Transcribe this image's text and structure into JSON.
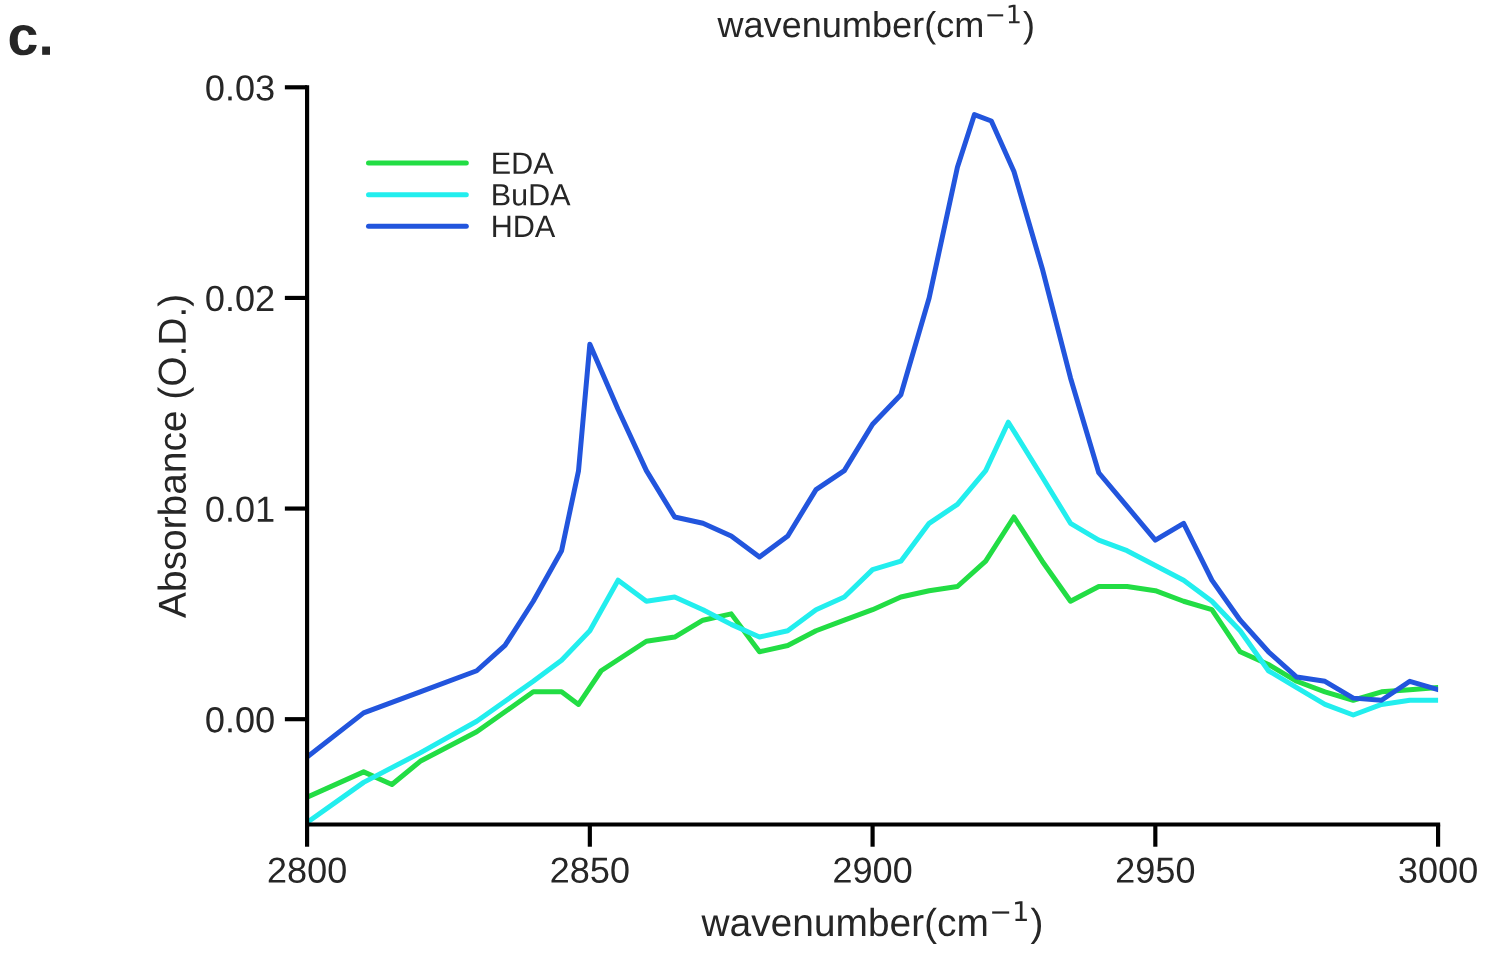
{
  "chart_data": {
    "type": "line",
    "xlabel": "wavenumber(cm$^{−1}$)",
    "ylabel": "Absorbance (O.D.)",
    "annotations": [
      "c.",
      "wavenumber(cm$^{−1}$)"
    ],
    "xlim": [
      2800,
      3000
    ],
    "xticks": [
      2800,
      2850,
      2900,
      2950,
      3000
    ],
    "ylim": [
      -0.005,
      0.03
    ],
    "yticks": [
      {
        "value": 0,
        "label": "0.00"
      },
      {
        "value": 0.01,
        "label": "0.01"
      },
      {
        "value": 0.02,
        "label": "0.02"
      },
      {
        "value": 0.03,
        "label": "0.03"
      }
    ],
    "grid": false,
    "legend": "top left",
    "line_style": "solid",
    "marker": "none",
    "series": [
      {
        "name": "EDA",
        "color": "#22dd44",
        "x": [
          2800,
          2810,
          2815,
          2820,
          2830,
          2840,
          2845,
          2848,
          2852,
          2860,
          2865,
          2870,
          2875,
          2880,
          2885,
          2890,
          2895,
          2900,
          2905,
          2910,
          2915,
          2920,
          2925,
          2930,
          2935,
          2940,
          2945,
          2950,
          2955,
          2960,
          2965,
          2970,
          2975,
          2980,
          2985,
          2990,
          2995,
          3000
        ],
        "values": [
          -0.0037,
          -0.0025,
          -0.0031,
          -0.002,
          -0.0006,
          0.0013,
          0.0013,
          0.0007,
          0.0023,
          0.0037,
          0.0039,
          0.0047,
          0.005,
          0.0032,
          0.0035,
          0.0042,
          0.0047,
          0.0052,
          0.0058,
          0.0061,
          0.0063,
          0.0075,
          0.0096,
          0.0075,
          0.0056,
          0.0063,
          0.0063,
          0.0061,
          0.0056,
          0.0052,
          0.0032,
          0.0026,
          0.0018,
          0.0013,
          0.0009,
          0.0013,
          0.0014,
          0.0015
        ]
      },
      {
        "name": "BuDA",
        "color": "#22eeee",
        "x": [
          2800,
          2810,
          2820,
          2830,
          2840,
          2845,
          2850,
          2855,
          2860,
          2865,
          2870,
          2875,
          2880,
          2885,
          2890,
          2895,
          2900,
          2905,
          2910,
          2915,
          2920,
          2924,
          2930,
          2935,
          2940,
          2945,
          2950,
          2955,
          2960,
          2965,
          2970,
          2975,
          2980,
          2985,
          2990,
          2995,
          3000
        ],
        "values": [
          -0.0049,
          -0.003,
          -0.0016,
          -0.0001,
          0.0018,
          0.0028,
          0.0042,
          0.0066,
          0.0056,
          0.0058,
          0.0052,
          0.0045,
          0.0039,
          0.0042,
          0.0052,
          0.0058,
          0.0071,
          0.0075,
          0.0093,
          0.0102,
          0.0118,
          0.0141,
          0.0115,
          0.0093,
          0.0085,
          0.008,
          0.0073,
          0.0066,
          0.0056,
          0.0042,
          0.0023,
          0.0015,
          0.0007,
          0.0002,
          0.0007,
          0.0009,
          0.0009
        ]
      },
      {
        "name": "HDA",
        "color": "#2255dd",
        "x": [
          2800,
          2810,
          2820,
          2830,
          2835,
          2840,
          2845,
          2848,
          2850,
          2855,
          2860,
          2865,
          2870,
          2875,
          2880,
          2885,
          2890,
          2895,
          2900,
          2905,
          2910,
          2915,
          2918,
          2921,
          2925,
          2930,
          2935,
          2940,
          2945,
          2950,
          2955,
          2960,
          2965,
          2970,
          2975,
          2980,
          2985,
          2990,
          2995,
          3000
        ],
        "values": [
          -0.0018,
          0.0003,
          0.0013,
          0.0023,
          0.0035,
          0.0056,
          0.008,
          0.0118,
          0.0178,
          0.0147,
          0.0118,
          0.0096,
          0.0093,
          0.0087,
          0.0077,
          0.0087,
          0.0109,
          0.0118,
          0.014,
          0.0154,
          0.02,
          0.0262,
          0.0287,
          0.0284,
          0.026,
          0.0214,
          0.0162,
          0.0117,
          0.0101,
          0.0085,
          0.0093,
          0.0066,
          0.0047,
          0.0032,
          0.002,
          0.0018,
          0.001,
          0.0009,
          0.0018,
          0.0014
        ]
      }
    ]
  }
}
